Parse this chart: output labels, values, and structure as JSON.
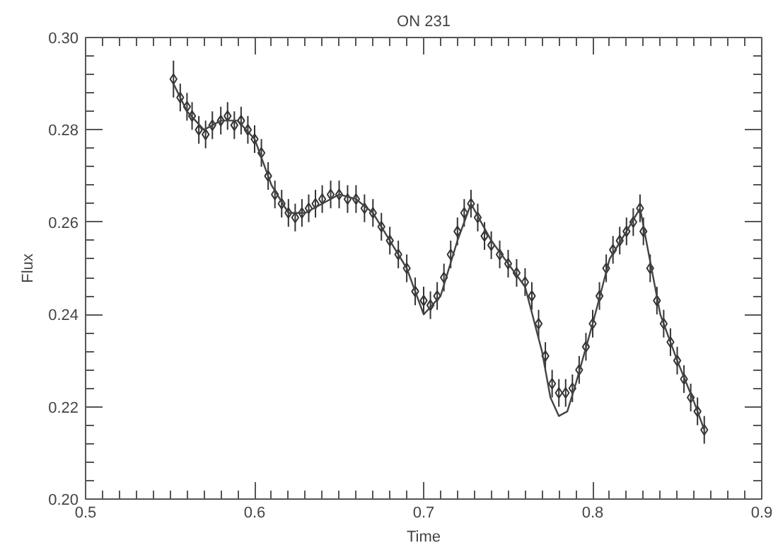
{
  "chart_data": {
    "type": "scatter",
    "title": "ON 231",
    "xlabel": "Time",
    "ylabel": "Flux",
    "xlim": [
      0.5,
      0.9
    ],
    "ylim": [
      0.2,
      0.3
    ],
    "xticks": [
      0.5,
      0.6,
      0.7,
      0.8,
      0.9
    ],
    "yticks": [
      {
        "value": 0.2,
        "label": "0.20"
      },
      {
        "value": 0.22,
        "label": "0.22"
      },
      {
        "value": 0.24,
        "label": "0.24"
      },
      {
        "value": 0.26,
        "label": "0.26"
      },
      {
        "value": 0.28,
        "label": "0.28"
      },
      {
        "value": 0.3,
        "label": "0.30"
      }
    ],
    "grid": false,
    "series": [
      {
        "marker": "diamond",
        "color": "#333333",
        "x": [
          0.552,
          0.556,
          0.56,
          0.563,
          0.567,
          0.571,
          0.575,
          0.58,
          0.584,
          0.588,
          0.592,
          0.596,
          0.6,
          0.604,
          0.608,
          0.612,
          0.616,
          0.62,
          0.624,
          0.628,
          0.632,
          0.636,
          0.64,
          0.645,
          0.65,
          0.655,
          0.66,
          0.665,
          0.67,
          0.675,
          0.68,
          0.685,
          0.69,
          0.695,
          0.7,
          0.704,
          0.708,
          0.712,
          0.716,
          0.72,
          0.724,
          0.728,
          0.732,
          0.736,
          0.74,
          0.745,
          0.75,
          0.755,
          0.76,
          0.764,
          0.768,
          0.772,
          0.776,
          0.78,
          0.784,
          0.788,
          0.792,
          0.796,
          0.8,
          0.804,
          0.808,
          0.812,
          0.816,
          0.82,
          0.824,
          0.828,
          0.83,
          0.834,
          0.838,
          0.842,
          0.846,
          0.85,
          0.854,
          0.858,
          0.862,
          0.866
        ],
        "values": [
          0.291,
          0.287,
          0.285,
          0.283,
          0.28,
          0.279,
          0.281,
          0.282,
          0.283,
          0.281,
          0.282,
          0.28,
          0.278,
          0.275,
          0.27,
          0.266,
          0.264,
          0.262,
          0.261,
          0.262,
          0.263,
          0.264,
          0.265,
          0.266,
          0.266,
          0.265,
          0.265,
          0.263,
          0.262,
          0.259,
          0.256,
          0.253,
          0.25,
          0.245,
          0.243,
          0.242,
          0.244,
          0.248,
          0.253,
          0.258,
          0.262,
          0.264,
          0.261,
          0.257,
          0.255,
          0.253,
          0.251,
          0.249,
          0.247,
          0.244,
          0.238,
          0.231,
          0.225,
          0.223,
          0.223,
          0.224,
          0.228,
          0.233,
          0.238,
          0.244,
          0.25,
          0.254,
          0.256,
          0.258,
          0.26,
          0.263,
          0.258,
          0.25,
          0.243,
          0.238,
          0.234,
          0.23,
          0.226,
          0.222,
          0.219,
          0.215
        ],
        "errors": [
          0.004,
          0.003,
          0.003,
          0.003,
          0.003,
          0.003,
          0.003,
          0.003,
          0.003,
          0.003,
          0.003,
          0.003,
          0.003,
          0.003,
          0.003,
          0.003,
          0.003,
          0.003,
          0.003,
          0.003,
          0.003,
          0.003,
          0.003,
          0.003,
          0.003,
          0.003,
          0.003,
          0.003,
          0.003,
          0.003,
          0.003,
          0.003,
          0.003,
          0.003,
          0.003,
          0.003,
          0.003,
          0.003,
          0.003,
          0.003,
          0.003,
          0.003,
          0.003,
          0.003,
          0.003,
          0.003,
          0.003,
          0.003,
          0.003,
          0.003,
          0.003,
          0.003,
          0.003,
          0.003,
          0.003,
          0.003,
          0.003,
          0.003,
          0.003,
          0.003,
          0.003,
          0.003,
          0.003,
          0.003,
          0.003,
          0.003,
          0.003,
          0.003,
          0.003,
          0.003,
          0.003,
          0.003,
          0.003,
          0.003,
          0.003,
          0.003
        ]
      },
      {
        "type": "line",
        "color": "#444444",
        "x": [
          0.552,
          0.56,
          0.57,
          0.58,
          0.59,
          0.6,
          0.61,
          0.62,
          0.63,
          0.64,
          0.65,
          0.66,
          0.67,
          0.68,
          0.69,
          0.7,
          0.71,
          0.72,
          0.728,
          0.74,
          0.75,
          0.76,
          0.77,
          0.775,
          0.78,
          0.785,
          0.79,
          0.8,
          0.81,
          0.82,
          0.828,
          0.84,
          0.85,
          0.86,
          0.866
        ],
        "values": [
          0.29,
          0.284,
          0.28,
          0.282,
          0.282,
          0.278,
          0.268,
          0.262,
          0.262,
          0.264,
          0.266,
          0.265,
          0.262,
          0.256,
          0.25,
          0.24,
          0.244,
          0.256,
          0.264,
          0.256,
          0.251,
          0.246,
          0.232,
          0.222,
          0.218,
          0.219,
          0.225,
          0.238,
          0.252,
          0.258,
          0.263,
          0.24,
          0.23,
          0.221,
          0.215
        ]
      }
    ]
  }
}
